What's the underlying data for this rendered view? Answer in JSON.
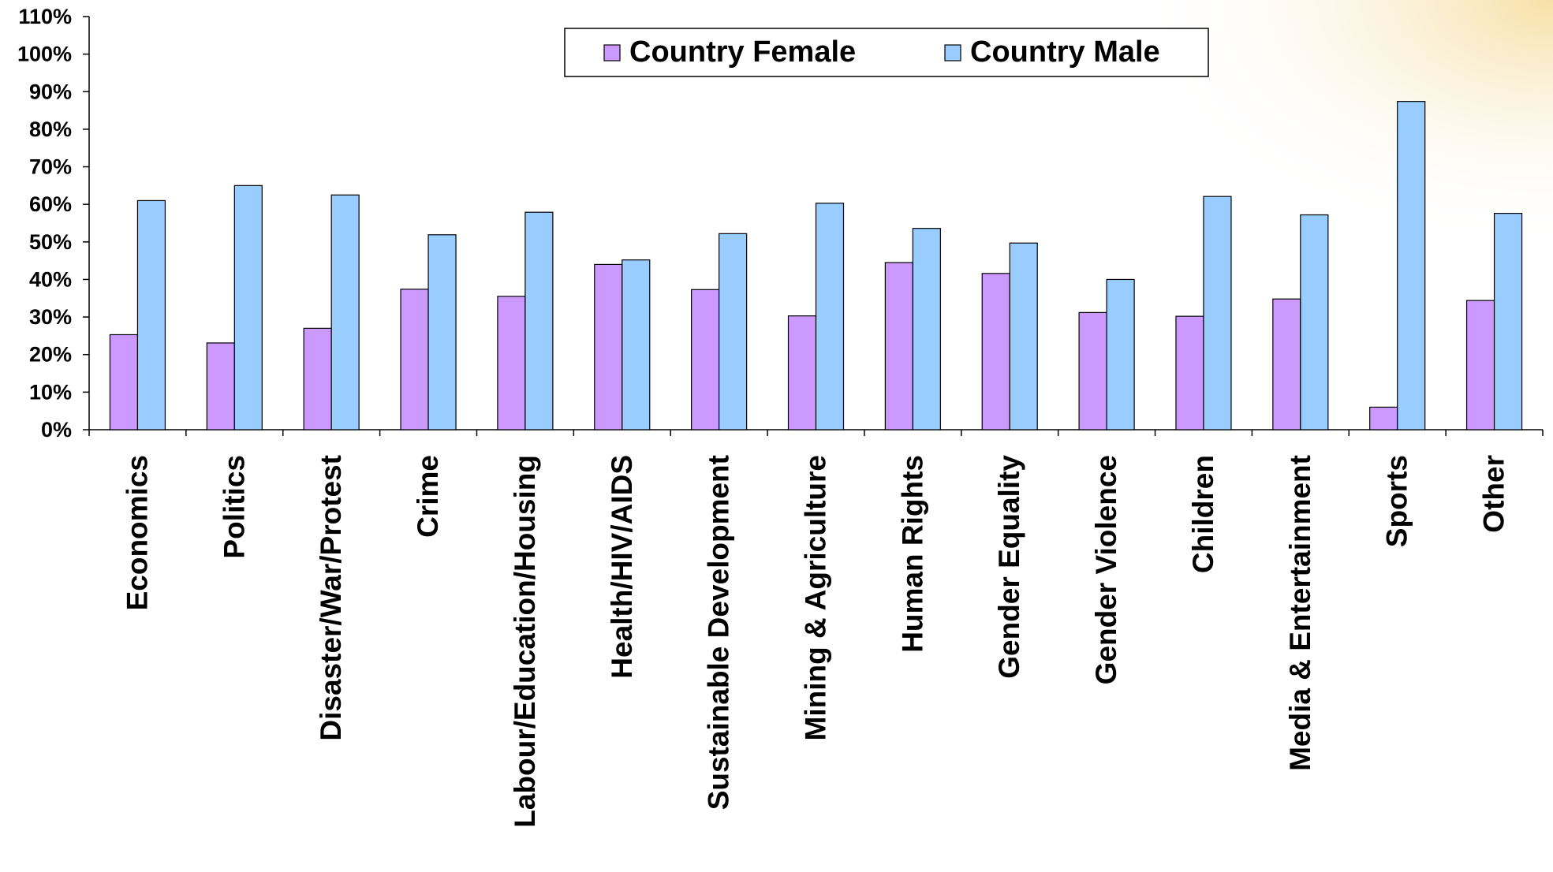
{
  "chart_data": {
    "type": "bar",
    "title": "",
    "xlabel": "",
    "ylabel": "",
    "ylim": [
      0,
      110
    ],
    "yticks": [
      0,
      10,
      20,
      30,
      40,
      50,
      60,
      70,
      80,
      90,
      100,
      110
    ],
    "ytick_labels": [
      "0%",
      "10%",
      "20%",
      "30%",
      "40%",
      "50%",
      "60%",
      "70%",
      "80%",
      "90%",
      "100%",
      "110%"
    ],
    "grid": false,
    "legend_position": "top-center",
    "categories": [
      "Economics",
      "Politics",
      "Disaster/War/Protest",
      "Crime",
      "Labour/Education/Housing",
      "Health/HIV/AIDS",
      "Sustainable Development",
      "Mining & Agriculture",
      "Human Rights",
      "Gender Equality",
      "Gender Violence",
      "Children",
      "Media & Entertainment",
      "Sports",
      "Other"
    ],
    "series": [
      {
        "name": "Country Female",
        "color": "#cc99ff",
        "values": [
          25.3,
          23.1,
          27,
          37.4,
          35.5,
          44,
          37.3,
          30.3,
          44.5,
          41.6,
          31.2,
          30.2,
          34.8,
          6,
          34.4
        ]
      },
      {
        "name": "Country Male",
        "color": "#99ccff",
        "values": [
          61,
          65,
          62.5,
          51.9,
          57.9,
          45.2,
          52.2,
          60.3,
          53.6,
          49.7,
          40,
          62.1,
          57.2,
          87.4,
          57.6
        ]
      }
    ]
  }
}
